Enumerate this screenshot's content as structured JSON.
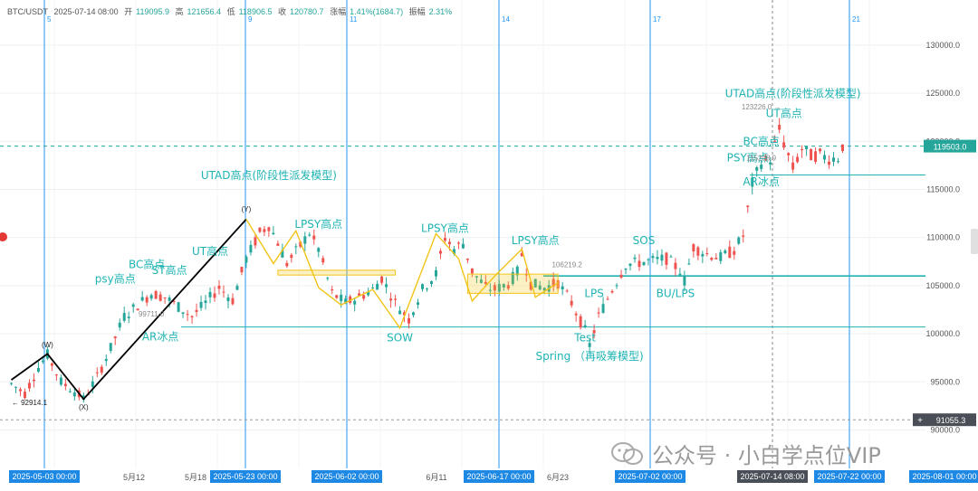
{
  "header": {
    "symbol": "BTC/USDT",
    "date": "2025-07-14 08:00",
    "open_label": "开",
    "open": "119095.9",
    "high_label": "高",
    "high": "121656.4",
    "low_label": "低",
    "low": "118906.5",
    "close_label": "收",
    "close": "120780.7",
    "change_label": "涨幅",
    "change": "1.41%(1684.7)",
    "amp_label": "振幅",
    "amp": "2.31%"
  },
  "watermark": "公众号 · 小白学点位VIP",
  "colors": {
    "up": "#26a69a",
    "down": "#ef5350",
    "annotation": "#1fb3b3",
    "vline": "#2196f3",
    "pattern": "#f2c417",
    "trend": "#000000"
  },
  "chart_data": {
    "type": "candlestick",
    "y_axis": {
      "min": 86000,
      "max": 133000,
      "ticks": [
        90000,
        95000,
        100000,
        105000,
        110000,
        115000,
        120000,
        125000,
        130000
      ],
      "position": "right"
    },
    "x_axis_labels": [
      "5月12",
      "5月18",
      "6月11",
      "6月23"
    ],
    "x_axis_highlights": [
      "2025-05-03 00:00",
      "2025-05-23 00:00",
      "2025-06-02 00:00",
      "2025-06-17 00:00",
      "2025-07-02 00:00",
      "2025-07-14 08:00",
      "2025-07-22 00:00",
      "2025-08-01 00:00"
    ],
    "vertical_line_labels": [
      "5",
      "9",
      "11",
      "14",
      "17",
      "21"
    ],
    "price_tags": [
      "119503.0",
      "91055.3"
    ],
    "horizontal_levels": [
      100700,
      106000,
      116500
    ],
    "dashed_levels": [
      119503,
      91055
    ],
    "price_path": [
      [
        0,
        94800
      ],
      [
        3,
        93800
      ],
      [
        6,
        96500
      ],
      [
        8,
        97800
      ],
      [
        11,
        95000
      ],
      [
        14,
        94000
      ],
      [
        16,
        93200
      ],
      [
        19,
        95500
      ],
      [
        22,
        98500
      ],
      [
        25,
        101800
      ],
      [
        28,
        103000
      ],
      [
        31,
        104200
      ],
      [
        34,
        103800
      ],
      [
        37,
        102800
      ],
      [
        40,
        101800
      ],
      [
        43,
        103200
      ],
      [
        46,
        104800
      ],
      [
        49,
        103500
      ],
      [
        52,
        107800
      ],
      [
        55,
        110500
      ],
      [
        57,
        111300
      ],
      [
        59,
        109500
      ],
      [
        61,
        107300
      ],
      [
        63,
        108500
      ],
      [
        66,
        110500
      ],
      [
        68,
        108800
      ],
      [
        71,
        104200
      ],
      [
        74,
        103200
      ],
      [
        77,
        103800
      ],
      [
        80,
        104600
      ],
      [
        82,
        105800
      ],
      [
        85,
        103200
      ],
      [
        88,
        101500
      ],
      [
        91,
        104600
      ],
      [
        94,
        106200
      ],
      [
        96,
        110000
      ],
      [
        98,
        108800
      ],
      [
        100,
        109400
      ],
      [
        102,
        106500
      ],
      [
        105,
        104800
      ],
      [
        107,
        104600
      ],
      [
        110,
        105200
      ],
      [
        112,
        106400
      ],
      [
        113,
        108200
      ],
      [
        115,
        105200
      ],
      [
        118,
        104800
      ],
      [
        121,
        105300
      ],
      [
        124,
        103200
      ],
      [
        127,
        100300
      ],
      [
        128,
        98800
      ],
      [
        130,
        101800
      ],
      [
        133,
        104600
      ],
      [
        136,
        107200
      ],
      [
        139,
        107400
      ],
      [
        142,
        107600
      ],
      [
        145,
        107800
      ],
      [
        148,
        106600
      ],
      [
        149,
        105500
      ],
      [
        151,
        109000
      ],
      [
        154,
        108300
      ],
      [
        157,
        107900
      ],
      [
        160,
        108700
      ],
      [
        162,
        110200
      ],
      [
        164,
        115600
      ],
      [
        166,
        117800
      ],
      [
        168,
        118100
      ],
      [
        170,
        121200
      ],
      [
        171,
        119800
      ],
      [
        173,
        117200
      ],
      [
        175,
        119200
      ],
      [
        177,
        118500
      ],
      [
        179,
        118600
      ],
      [
        181,
        118200
      ],
      [
        183,
        118300
      ],
      [
        184,
        119503
      ]
    ],
    "annotations": [
      {
        "text": "UTAD高点(阶段性派发模型)",
        "x": 57,
        "y": 116100
      },
      {
        "text": "UTAD高点(阶段性派发模型)",
        "x": 173,
        "y": 124600
      },
      {
        "text": "UT高点",
        "x": 44,
        "y": 108200
      },
      {
        "text": "UT高点",
        "x": 171,
        "y": 122500
      },
      {
        "text": "BC高点",
        "x": 30,
        "y": 106800
      },
      {
        "text": "BC高点",
        "x": 166,
        "y": 119600
      },
      {
        "text": "ST高点",
        "x": 35,
        "y": 106200
      },
      {
        "text": "psy高点",
        "x": 23,
        "y": 105300
      },
      {
        "text": "PSY高点",
        "x": 163,
        "y": 117900
      },
      {
        "text": "AR冰点",
        "x": 33,
        "y": 99300
      },
      {
        "text": "AR冰点",
        "x": 166,
        "y": 115400
      },
      {
        "text": "LPSY高点",
        "x": 68,
        "y": 111000
      },
      {
        "text": "LPSY高点",
        "x": 96,
        "y": 110600
      },
      {
        "text": "LPSY高点",
        "x": 116,
        "y": 109300
      },
      {
        "text": "SOW",
        "x": 86,
        "y": 99200
      },
      {
        "text": "Test",
        "x": 127,
        "y": 99200
      },
      {
        "text": "Spring （再吸筹模型)",
        "x": 128,
        "y": 97300
      },
      {
        "text": "LPS",
        "x": 129,
        "y": 103800
      },
      {
        "text": "SOS",
        "x": 140,
        "y": 109300
      },
      {
        "text": "BU/LPS",
        "x": 147,
        "y": 103800
      }
    ],
    "small_labels": [
      {
        "text": "(W)",
        "x": 8,
        "y": 98600
      },
      {
        "text": "(X)",
        "x": 16,
        "y": 92100
      },
      {
        "text": "(Y)",
        "x": 52,
        "y": 112700
      },
      {
        "text": "← 92914.1",
        "x": 4,
        "y": 92600
      },
      {
        "text": "106219.2",
        "x": 123,
        "y": 106900
      },
      {
        "text": "123226.0 →",
        "x": 166,
        "y": 123300
      },
      {
        "text": "99711.0",
        "x": 31,
        "y": 101800
      },
      {
        "text": "115208.9",
        "x": 166,
        "y": 118000
      }
    ]
  }
}
